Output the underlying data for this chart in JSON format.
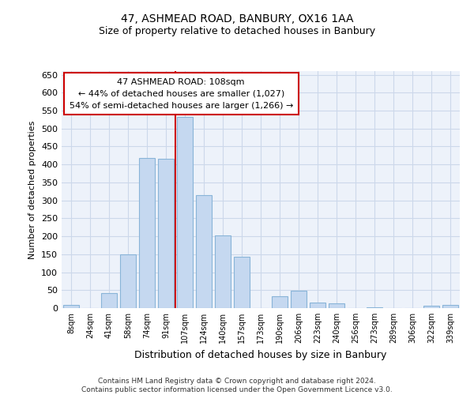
{
  "title1": "47, ASHMEAD ROAD, BANBURY, OX16 1AA",
  "title2": "Size of property relative to detached houses in Banbury",
  "xlabel": "Distribution of detached houses by size in Banbury",
  "ylabel": "Number of detached properties",
  "categories": [
    "8sqm",
    "24sqm",
    "41sqm",
    "58sqm",
    "74sqm",
    "91sqm",
    "107sqm",
    "124sqm",
    "140sqm",
    "157sqm",
    "173sqm",
    "190sqm",
    "206sqm",
    "223sqm",
    "240sqm",
    "256sqm",
    "273sqm",
    "289sqm",
    "306sqm",
    "322sqm",
    "339sqm"
  ],
  "values": [
    8,
    0,
    42,
    150,
    418,
    415,
    533,
    315,
    203,
    143,
    0,
    33,
    48,
    16,
    13,
    0,
    3,
    0,
    0,
    7,
    8
  ],
  "bar_color": "#c5d8f0",
  "bar_edge_color": "#89b4d8",
  "annotation_text_line1": "47 ASHMEAD ROAD: 108sqm",
  "annotation_text_line2": "← 44% of detached houses are smaller (1,027)",
  "annotation_text_line3": "54% of semi-detached houses are larger (1,266) →",
  "annotation_box_color": "#ffffff",
  "annotation_box_edge_color": "#cc0000",
  "vline_color": "#cc0000",
  "grid_color": "#ccd8ea",
  "background_color": "#edf2fa",
  "footer_text": "Contains HM Land Registry data © Crown copyright and database right 2024.\nContains public sector information licensed under the Open Government Licence v3.0.",
  "ylim": [
    0,
    660
  ],
  "yticks": [
    0,
    50,
    100,
    150,
    200,
    250,
    300,
    350,
    400,
    450,
    500,
    550,
    600,
    650
  ],
  "vline_x_index": 6
}
